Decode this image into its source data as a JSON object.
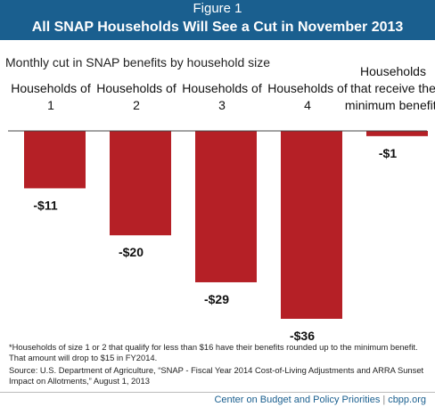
{
  "figure_label": "Figure 1",
  "title": "All SNAP Households Will See a Cut in November 2013",
  "subtitle": "Monthly cut in SNAP benefits by household size",
  "colors": {
    "header_band": "#1a5f8f",
    "bar": "#b52026",
    "baseline": "#444444"
  },
  "chart_data": {
    "type": "bar",
    "title": "Monthly cut in SNAP benefits by household size",
    "categories": [
      [
        "Households of",
        "1"
      ],
      [
        "Households of",
        "2"
      ],
      [
        "Households of",
        "3"
      ],
      [
        "Households of",
        "4"
      ],
      [
        "Households",
        "that receive the",
        "minimum benefit*"
      ]
    ],
    "values": [
      -11,
      -20,
      -29,
      -36,
      -1
    ],
    "value_labels": [
      "-$11",
      "-$20",
      "-$29",
      "-$36",
      "-$1"
    ],
    "ylim": [
      -36,
      0
    ],
    "grid": false,
    "xlabel": "",
    "ylabel": ""
  },
  "notes": {
    "footnote": "*Households of size 1 or 2 that qualify for less than $16 have their benefits rounded up to the minimum benefit. That amount will drop to $15 in FY2014.",
    "source": "Source: U.S. Department of Agriculture, “SNAP - Fiscal Year 2014 Cost-of-Living Adjustments and ARRA Sunset Impact on Allotments,” August 1, 2013"
  },
  "footer": {
    "org": "Center on Budget and Policy Priorities",
    "separator": "|",
    "site": "cbpp.org"
  }
}
